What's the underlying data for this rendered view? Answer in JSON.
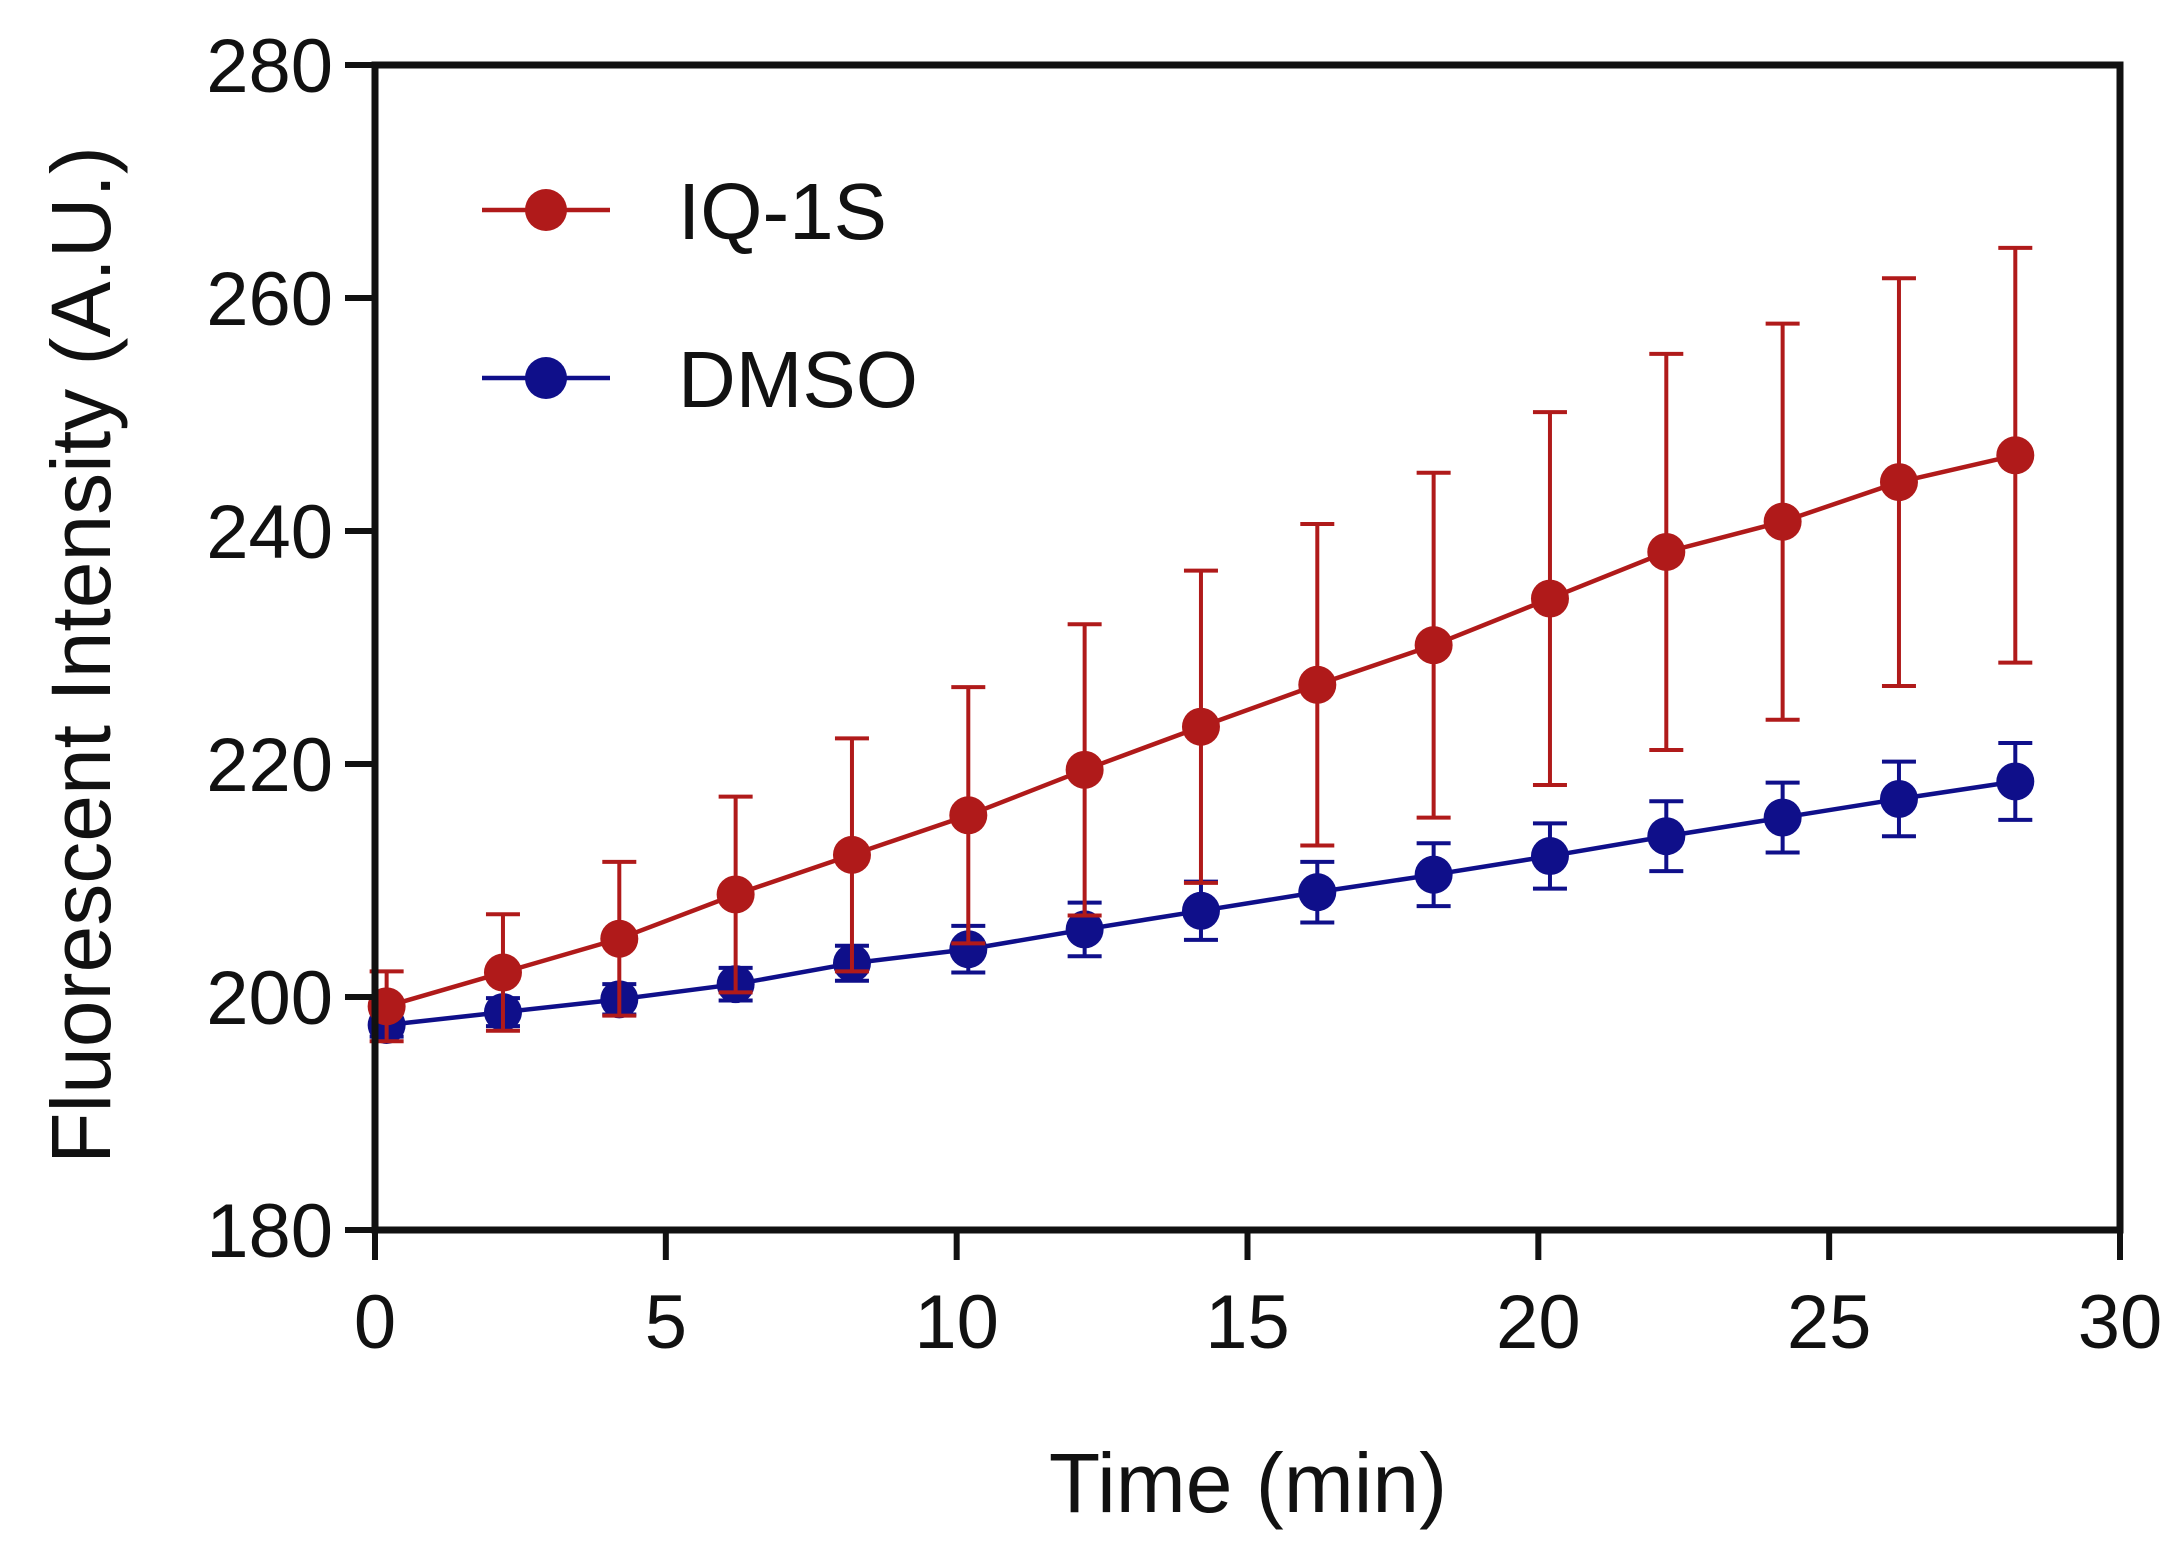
{
  "chart_data": {
    "type": "line",
    "xlabel": "Time (min)",
    "ylabel": "Fluorescent Intensity (A.U.)",
    "xlim": [
      0,
      30
    ],
    "ylim": [
      180,
      280
    ],
    "xticks": [
      0,
      5,
      10,
      15,
      20,
      25,
      30
    ],
    "yticks": [
      180,
      200,
      220,
      240,
      260,
      280
    ],
    "grid": false,
    "legend_position": "top-left",
    "x": [
      0.2,
      2.2,
      4.2,
      6.2,
      8.2,
      10.2,
      12.2,
      14.2,
      16.2,
      18.2,
      20.2,
      22.2,
      24.2,
      26.2,
      28.2
    ],
    "series": [
      {
        "name": "IQ-1S",
        "color": "#b01a1a",
        "values": [
          199.2,
          202.1,
          205.0,
          208.8,
          212.2,
          215.6,
          219.5,
          223.2,
          226.8,
          230.2,
          234.2,
          238.2,
          240.8,
          244.2,
          246.5
        ],
        "error": [
          3.0,
          5.0,
          6.6,
          8.4,
          10.0,
          11.0,
          12.5,
          13.4,
          13.8,
          14.8,
          16.0,
          17.0,
          17.0,
          17.5,
          17.8
        ]
      },
      {
        "name": "DMSO",
        "color": "#0f0f8a",
        "values": [
          197.6,
          198.7,
          199.8,
          201.1,
          202.9,
          204.1,
          205.8,
          207.4,
          209.0,
          210.5,
          212.1,
          213.8,
          215.4,
          217.0,
          218.5
        ],
        "error": [
          1.0,
          1.2,
          1.3,
          1.4,
          1.5,
          2.0,
          2.3,
          2.5,
          2.6,
          2.7,
          2.8,
          3.0,
          3.0,
          3.2,
          3.3
        ]
      }
    ]
  }
}
